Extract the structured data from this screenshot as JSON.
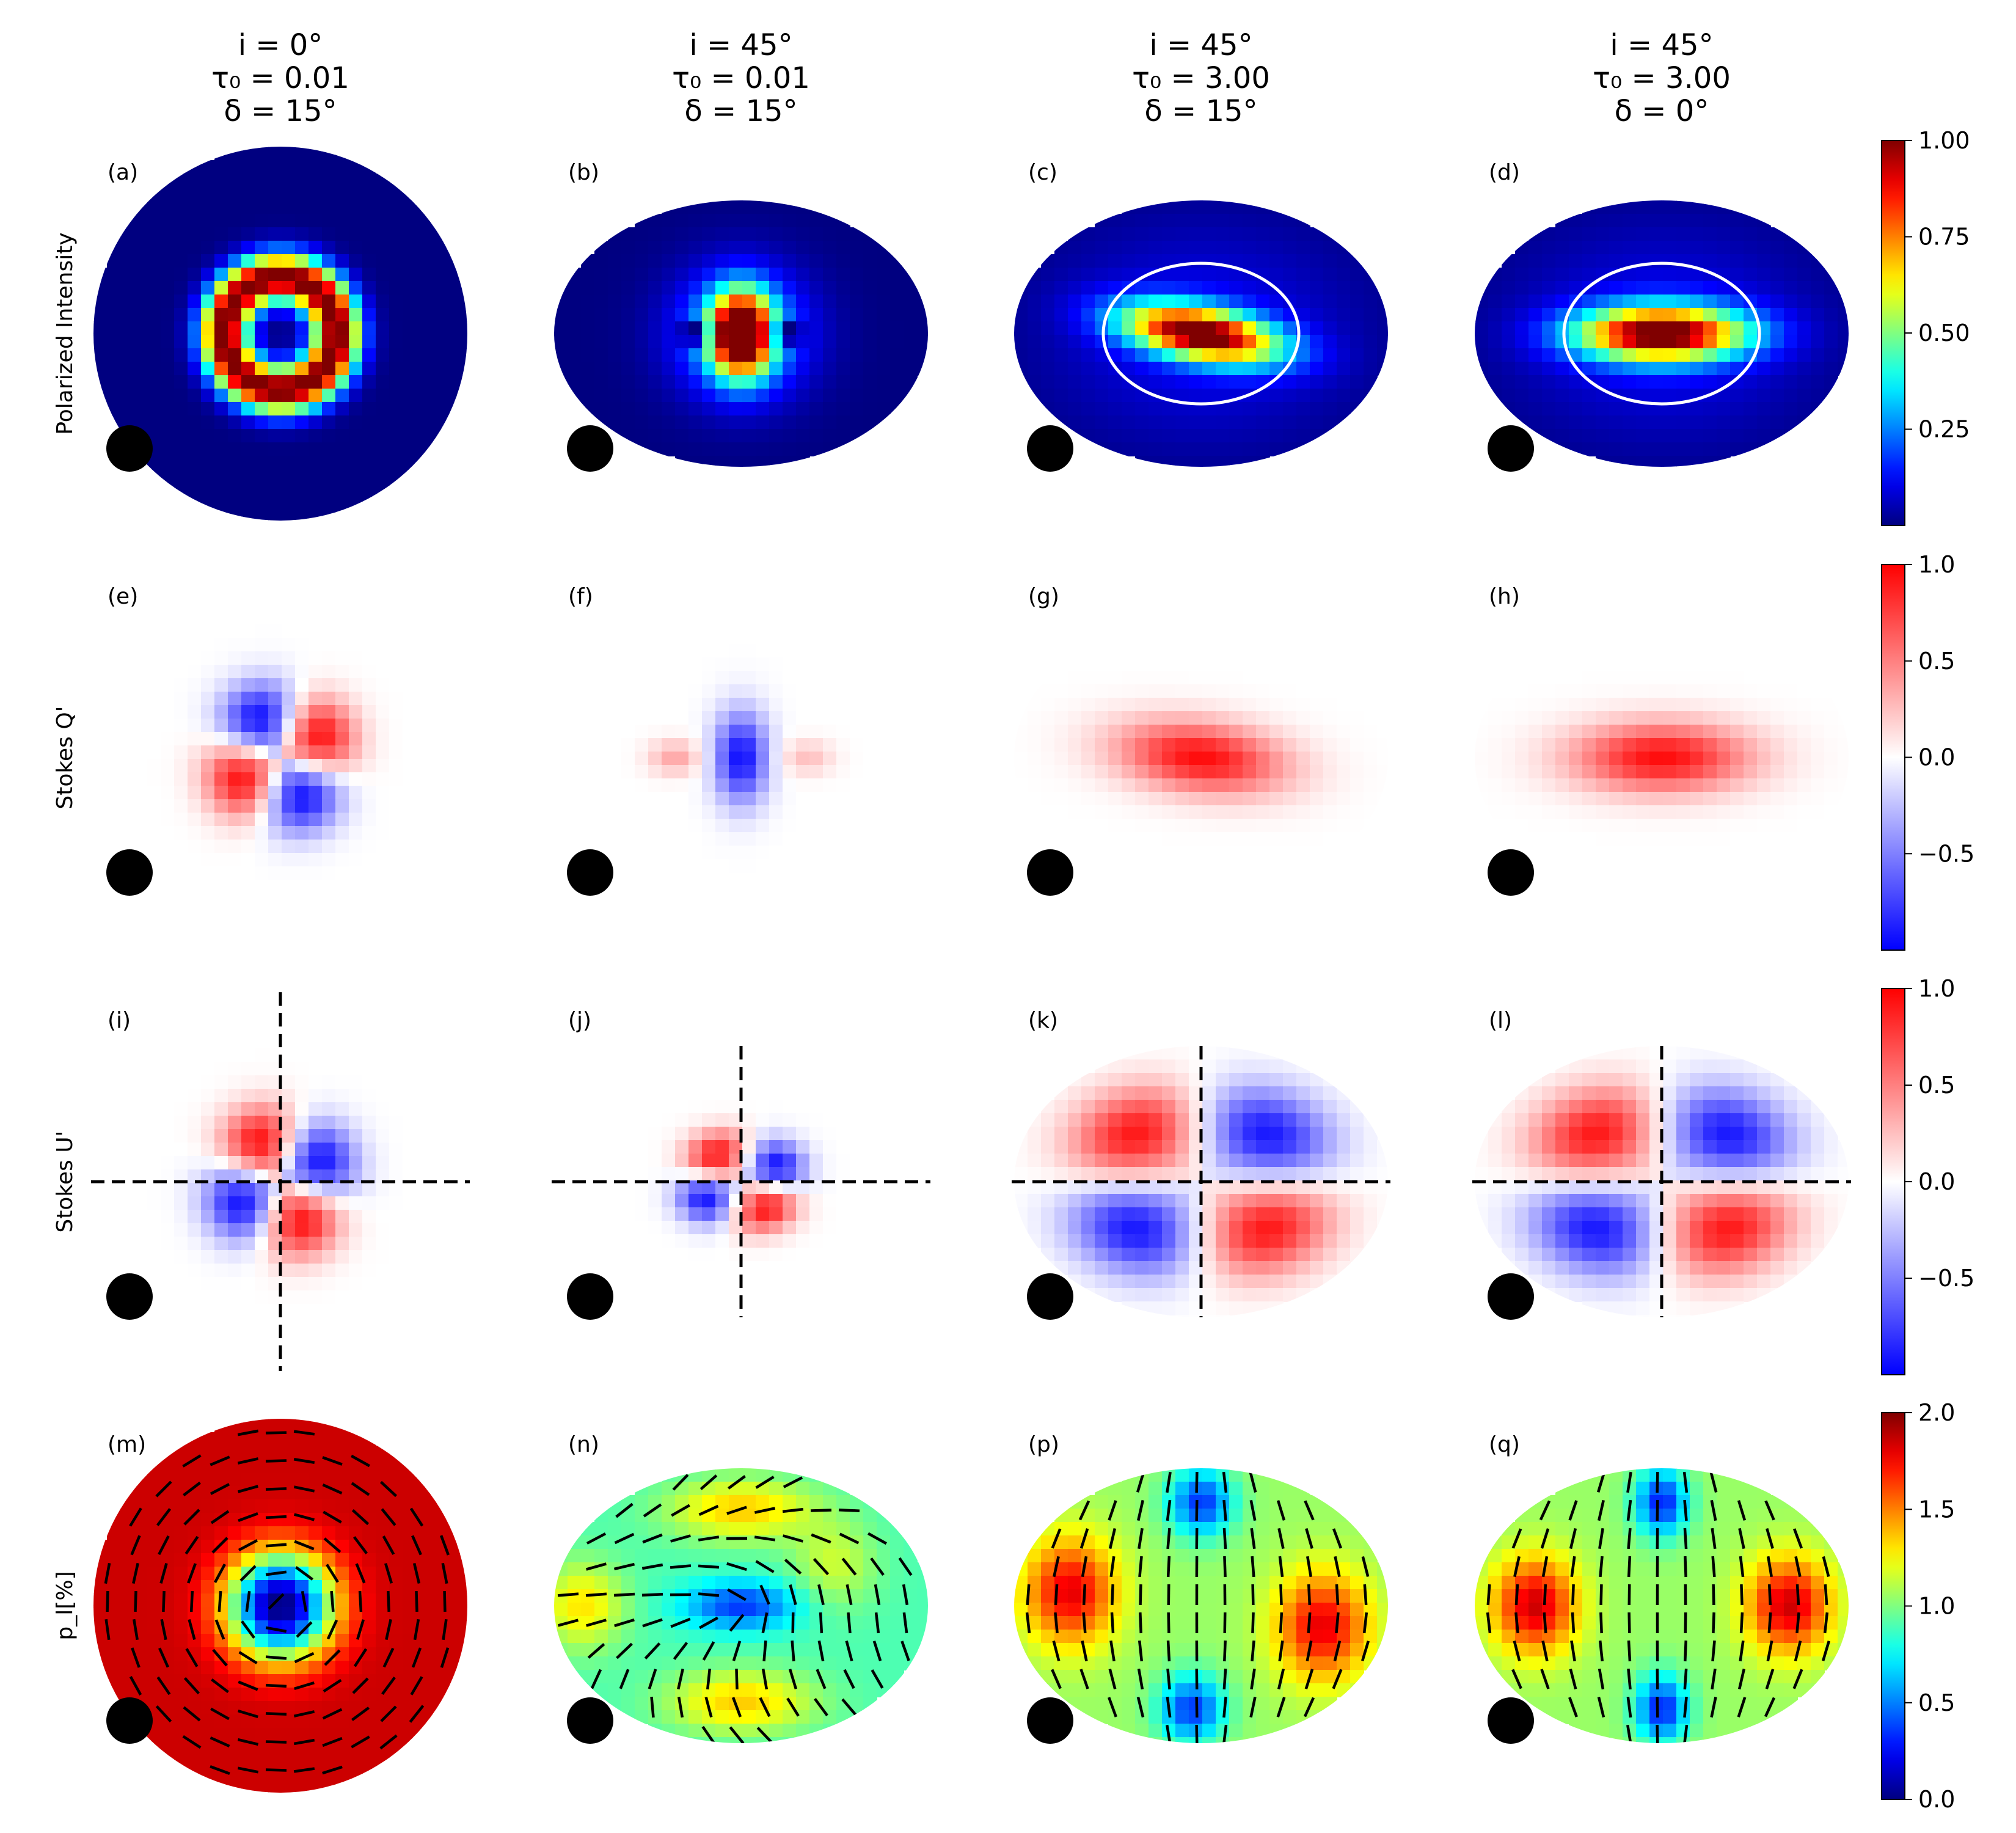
{
  "columns": [
    {
      "line1": "i = 0°",
      "line2": "τ₀ = 0.01",
      "line3": "δ = 15°"
    },
    {
      "line1": "i = 45°",
      "line2": "τ₀ = 0.01",
      "line3": "δ = 15°"
    },
    {
      "line1": "i = 45°",
      "line2": "τ₀ = 3.00",
      "line3": "δ = 15°"
    },
    {
      "line1": "i = 45°",
      "line2": "τ₀ = 3.00",
      "line3": "δ = 0°"
    }
  ],
  "rows": [
    {
      "label": "Polarized Intensity",
      "panels": [
        "(a)",
        "(b)",
        "(c)",
        "(d)"
      ]
    },
    {
      "label": "Stokes Q'",
      "panels": [
        "(e)",
        "(f)",
        "(g)",
        "(h)"
      ]
    },
    {
      "label": "Stokes U'",
      "panels": [
        "(i)",
        "(j)",
        "(k)",
        "(l)"
      ]
    },
    {
      "label": "p_l[%]",
      "panels": [
        "(m)",
        "(n)",
        "(p)",
        "(q)"
      ]
    }
  ],
  "chart_data": [
    {
      "type": "heatmap",
      "quantity": "Polarized Intensity",
      "colormap": "jet",
      "colorbar": {
        "min": 0.0,
        "max": 1.0,
        "ticks": [
          "0.25",
          "0.50",
          "0.75",
          "1.00"
        ]
      },
      "panels": [
        {
          "id": "(a)",
          "inclination_deg": 0,
          "tau0": 0.01,
          "delta_deg": 15,
          "pattern": "ring with central hole"
        },
        {
          "id": "(b)",
          "inclination_deg": 45,
          "tau0": 0.01,
          "delta_deg": 15,
          "pattern": "central vertical peak"
        },
        {
          "id": "(c)",
          "inclination_deg": 45,
          "tau0": 3.0,
          "delta_deg": 15,
          "pattern": "tilted elongated peak, white ellipse overlay"
        },
        {
          "id": "(d)",
          "inclination_deg": 45,
          "tau0": 3.0,
          "delta_deg": 0,
          "pattern": "horizontal elongated peak, white ellipse overlay"
        }
      ]
    },
    {
      "type": "heatmap",
      "quantity": "Stokes Q'",
      "colormap": "bwr",
      "colorbar": {
        "min": -1.0,
        "max": 1.0,
        "ticks": [
          "−0.5",
          "0.0",
          "0.5",
          "1.0"
        ]
      },
      "panels": [
        {
          "id": "(e)",
          "pattern": "four-lobe quadrupole"
        },
        {
          "id": "(f)",
          "pattern": "vertical negative lobe"
        },
        {
          "id": "(g)",
          "pattern": "tilted positive lobe"
        },
        {
          "id": "(h)",
          "pattern": "horizontal positive lobe"
        }
      ]
    },
    {
      "type": "heatmap",
      "quantity": "Stokes U'",
      "colormap": "bwr",
      "colorbar": {
        "min": -1.0,
        "max": 1.0,
        "ticks": [
          "−0.5",
          "0.0",
          "0.5",
          "1.0"
        ]
      },
      "panels": [
        {
          "id": "(i)",
          "pattern": "four-lobe quadrant, dashed axes"
        },
        {
          "id": "(j)",
          "pattern": "four-lobe quadrant, dashed axes"
        },
        {
          "id": "(k)",
          "pattern": "four-lobe quadrant, dashed axes"
        },
        {
          "id": "(l)",
          "pattern": "four-lobe quadrant, dashed axes"
        }
      ]
    },
    {
      "type": "heatmap",
      "quantity": "p_l[%]",
      "colormap": "jet",
      "colorbar": {
        "min": 0.0,
        "max": 2.0,
        "ticks": [
          "0.0",
          "0.5",
          "1.0",
          "1.5",
          "2.0"
        ]
      },
      "panels": [
        {
          "id": "(m)",
          "pattern": "high outer field with low central hole, azimuthal vectors"
        },
        {
          "id": "(n)",
          "pattern": "mixed field with vector overlay"
        },
        {
          "id": "(p)",
          "pattern": "high side lobes, low top/bottom, vector overlay"
        },
        {
          "id": "(q)",
          "pattern": "high side lobes, low top/bottom, vector overlay"
        }
      ]
    }
  ],
  "colors": {
    "white_ellipse": "#ffffff",
    "dashed_lines": "#000000",
    "disk_marker": "#000000"
  }
}
